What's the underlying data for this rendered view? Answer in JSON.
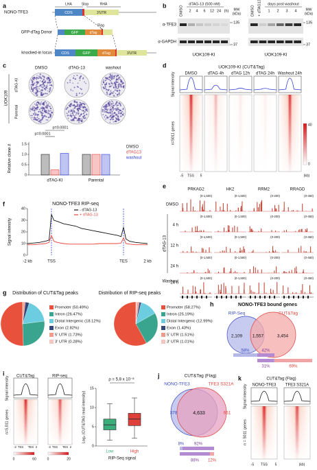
{
  "a": {
    "label": "a",
    "gene": "NONO-TFE3",
    "lha": "LHA",
    "stop": "Stop",
    "rha": "RHA",
    "cds": "CDS",
    "utr": "3'UTR",
    "donor": "GFP-dTag Donor",
    "gfp": "GFP",
    "dtag": "dTag",
    "flag": "Flag",
    "locus": "knocked-in locus",
    "cds2": "CDS",
    "gfp2": "GFP",
    "dtag2": "dTag",
    "utr2": "3'UTR"
  },
  "b": {
    "label": "b",
    "left": {
      "dmso": "DMSO",
      "treat": "dTAG-13 (500 nM)",
      "times": [
        "2",
        "4",
        "6",
        "12",
        "24"
      ],
      "unit": "(h)",
      "mw": "MW",
      "kda": "(kDa)",
      "bands": [
        "α-TFE3",
        "α-GAPDH"
      ],
      "mws": [
        "135",
        "37"
      ],
      "cell": "UOK109-KI"
    },
    "right": {
      "lanes": [
        "DMSO",
        "+ dTAG13"
      ],
      "washout": "days post washout",
      "days": [
        "1",
        "2",
        "3",
        "4"
      ],
      "mw": "MW",
      "kda": "(kDa)",
      "mws": [
        "135",
        "37"
      ],
      "cell": "UOK109-KI"
    }
  },
  "c": {
    "label": "c",
    "conditions": [
      "DMSO",
      "dTAG-13",
      "washout"
    ],
    "cell": "UOK109",
    "rows": [
      "dTAG-KI",
      "Parental"
    ],
    "chart": {
      "type": "bar",
      "ylabel": "Relative clone #",
      "categories": [
        "dTAG-KI",
        "Parental"
      ],
      "series": [
        {
          "name": "DMSO",
          "color": "#222222",
          "values": [
            1.0,
            1.0
          ]
        },
        {
          "name": "dTAG13",
          "color": "#e8403a",
          "values": [
            0.25,
            1.0
          ]
        },
        {
          "name": "washout",
          "color": "#2b3cd8",
          "values": [
            1.05,
            1.0
          ]
        }
      ],
      "ylim": [
        0,
        1.6
      ],
      "yticks": [
        0,
        0.5,
        {
          "value": 1,
          "label": "1.0"
        },
        1.5
      ],
      "annotations": [
        "p=0.0001",
        "p=0.0001"
      ]
    }
  },
  "d": {
    "label": "d",
    "title": "UOK109-KI (CUT&Tag)",
    "columns": [
      "DMSO",
      "dTAG 4h",
      "dTAG 12h",
      "dTAG 24h",
      "Washout 24h"
    ],
    "ylabel": "Signal intensity",
    "rowlabel": "n=5011 genes",
    "xlabels": [
      "-5",
      "TSS",
      "5",
      "(kb)"
    ],
    "scale": [
      "40",
      "0"
    ]
  },
  "e": {
    "label": "e",
    "genes": [
      "PRKAG2",
      "HK2",
      "RRM2",
      "RRAGD"
    ],
    "rows": [
      "DMSO",
      "4 h",
      "12 h",
      "24 h",
      "Washout"
    ],
    "washout_time": "24 h",
    "group": "dTAG-13",
    "ranges": [
      [
        "(0-1,500)",
        "(0-1,500)",
        "(0-200)",
        "(0-450)"
      ],
      [
        "(0-1,500)",
        "(0-1,500)",
        "(0-200)",
        "(0-450)"
      ],
      [
        "(0-1,500)",
        "(0-1,500)",
        "(0-200)",
        "(0-450)"
      ],
      [
        "(0-1,500)",
        "(0-1,500)",
        "(0-200)",
        "(0-450)"
      ],
      [
        "(0-1,500)",
        "(0-1,500)",
        "(0-200)",
        "(0-450)"
      ]
    ]
  },
  "f": {
    "label": "f",
    "chart": {
      "type": "line",
      "title": "NONO-TFE3 RIP-seq",
      "ylabel": "Signal intensity",
      "x": [
        0,
        5,
        10,
        15,
        18,
        20,
        22,
        25,
        30,
        35,
        40,
        45,
        50,
        55,
        60,
        65,
        70,
        75,
        78,
        80,
        82,
        85,
        90,
        95,
        100
      ],
      "series": [
        {
          "name": "- dTAG-13",
          "color": "#111111",
          "values": [
            10,
            10.5,
            11,
            12,
            13,
            35,
            30,
            29,
            27,
            26,
            25,
            23,
            22,
            21,
            20,
            19,
            18,
            17,
            16,
            24,
            14,
            12,
            11,
            10.5,
            10
          ]
        },
        {
          "name": "+ dTAG-13",
          "color": "#e8403a",
          "values": [
            9,
            9,
            9.5,
            10,
            11,
            17,
            12,
            11,
            10,
            9.5,
            9.5,
            9.5,
            9.5,
            9.5,
            10,
            10,
            10,
            10,
            10.5,
            15,
            10,
            9.5,
            9,
            9,
            9
          ]
        }
      ],
      "xlim": [
        0,
        100
      ],
      "xticks": [
        {
          "value": 0,
          "label": "-2 kb"
        },
        {
          "value": 20,
          "label": "TSS"
        },
        {
          "value": 80,
          "label": "TES"
        },
        {
          "value": 100,
          "label": "2 kb"
        }
      ],
      "ylim": [
        0,
        40
      ],
      "yticks": [
        0,
        10,
        20,
        30,
        40
      ]
    }
  },
  "g": {
    "label": "g",
    "pies": [
      {
        "type": "pie",
        "title": "Distribution of CUT&Tag peaks",
        "labels": [
          "Promoter (50.49%)",
          "Intron (26.47%)",
          "Distal Intergenic (18.12%)",
          "Exon (2.82%)",
          "5' UTR (1.73%)",
          "3' UTR (0.28%)"
        ],
        "values": [
          50.49,
          26.47,
          18.12,
          2.82,
          1.73,
          0.28
        ],
        "colors": [
          "#e8513c",
          "#3aa58f",
          "#6ccde0",
          "#34477a",
          "#f29b8c",
          "#f5c6bf"
        ]
      },
      {
        "type": "pie",
        "title": "Distribution of RIP-seq peaks",
        "labels": [
          "Promoter (58.27%)",
          "Intron (25.19%)",
          "Distal Intergenic (12.99%)",
          "Exon (1.43%)",
          "5' UTR (1.51%)",
          "3' UTR (1.01%)"
        ],
        "values": [
          58.27,
          25.19,
          12.99,
          1.43,
          1.51,
          1.01
        ],
        "colors": [
          "#e8513c",
          "#3aa58f",
          "#6ccde0",
          "#34477a",
          "#f29b8c",
          "#f5c6bf"
        ]
      }
    ]
  },
  "h": {
    "label": "h",
    "title": "NONO-TFE3 bound genes",
    "sets": [
      "RIP-Seq",
      "CUT&Tag"
    ],
    "counts": [
      "2,109",
      "1,557",
      "3,454"
    ],
    "bar1": {
      "values": [
        58,
        42
      ],
      "value_labels": [
        "58%",
        "42%"
      ],
      "colors": [
        "#b5b9e8",
        "#b48ad2"
      ]
    },
    "bar2": {
      "values": [
        31,
        69
      ],
      "value_labels": [
        "31%",
        "69%"
      ],
      "colors": [
        "#b48ad2",
        "#f2a5a5"
      ]
    }
  },
  "i": {
    "label": "i",
    "heatmaps": [
      "CUT&Tag",
      "RIP-seq"
    ],
    "ylabel": "Signal intensity",
    "rowlabel": "n=5,011 genes",
    "xlabels": [
      [
        "-2",
        "TSS",
        "TES",
        "2"
      ],
      [
        "-2",
        "TSS",
        "TES",
        "2"
      ]
    ],
    "scales": [
      [
        "0",
        "60"
      ],
      [
        "0",
        "20"
      ]
    ],
    "box": {
      "type": "box",
      "annotation": "ρ = 5.8 x 10⁻⁸",
      "ylabel": "Log₂ (CUT&TAG read intensity)",
      "xlabel": "RIP-Seq signal",
      "categories": [
        "Low",
        "High"
      ],
      "colors": [
        "#3aae7a",
        "#e0403a"
      ],
      "whisker_low": [
        1.5,
        2
      ],
      "q1": [
        4.2,
        5.3
      ],
      "median": [
        5.5,
        7
      ],
      "q3": [
        7,
        8.5
      ],
      "whisker_high": [
        11,
        12.5
      ],
      "ylim": [
        0,
        15
      ],
      "yticks": [
        0,
        5,
        10,
        15
      ]
    }
  },
  "j": {
    "label": "j",
    "title": "CUT&Tag (Flag)",
    "sets": [
      "NONO-TFE3",
      "TFE3 S321A"
    ],
    "counts": [
      "378",
      "4,633",
      "661"
    ],
    "bar1": {
      "values": [
        8,
        92
      ],
      "value_labels": [
        "8%",
        "92%"
      ],
      "colors": [
        "#b5b9e8",
        "#b48ad2"
      ]
    },
    "bar2": {
      "values": [
        88,
        12
      ],
      "value_labels": [
        "88%",
        "12%"
      ],
      "colors": [
        "#b48ad2",
        "#f2a5a5"
      ]
    }
  },
  "k": {
    "label": "k",
    "title": "CUT&Tag (Flag)",
    "columns": [
      "NONO-TFE3",
      "TFE3 S321A"
    ],
    "ylabel": "Signal intensity",
    "rowlabel": "n = 5011 genes",
    "xlabels": [
      "-5",
      "TSS",
      "5",
      "(kb)"
    ]
  }
}
